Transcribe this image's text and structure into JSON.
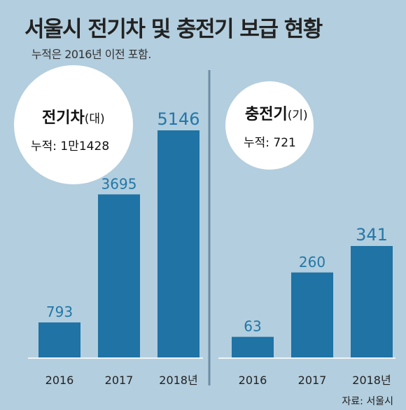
{
  "header": {
    "title": "서울시 전기차 및 충전기 보급 현황",
    "subtitle": "누적은 2016년 이전 포함."
  },
  "source": "자료: 서울시",
  "colors": {
    "background": "#b3cede",
    "bar": "#1f73a5",
    "value_label": "#2377a8",
    "divider": "#6f8fa5",
    "circle": "#ffffff"
  },
  "chart_data": [
    {
      "type": "bar",
      "panel": "left",
      "title": "전기차",
      "unit": "(대)",
      "cumulative_label": "누적: 1만1428",
      "categories": [
        "2016",
        "2017",
        "2018년"
      ],
      "values": [
        793,
        3695,
        5146
      ]
    },
    {
      "type": "bar",
      "panel": "right",
      "title": "충전기",
      "unit": "(기)",
      "cumulative_label": "누적: 721",
      "categories": [
        "2016",
        "2017",
        "2018년"
      ],
      "values": [
        63,
        260,
        341
      ]
    }
  ]
}
